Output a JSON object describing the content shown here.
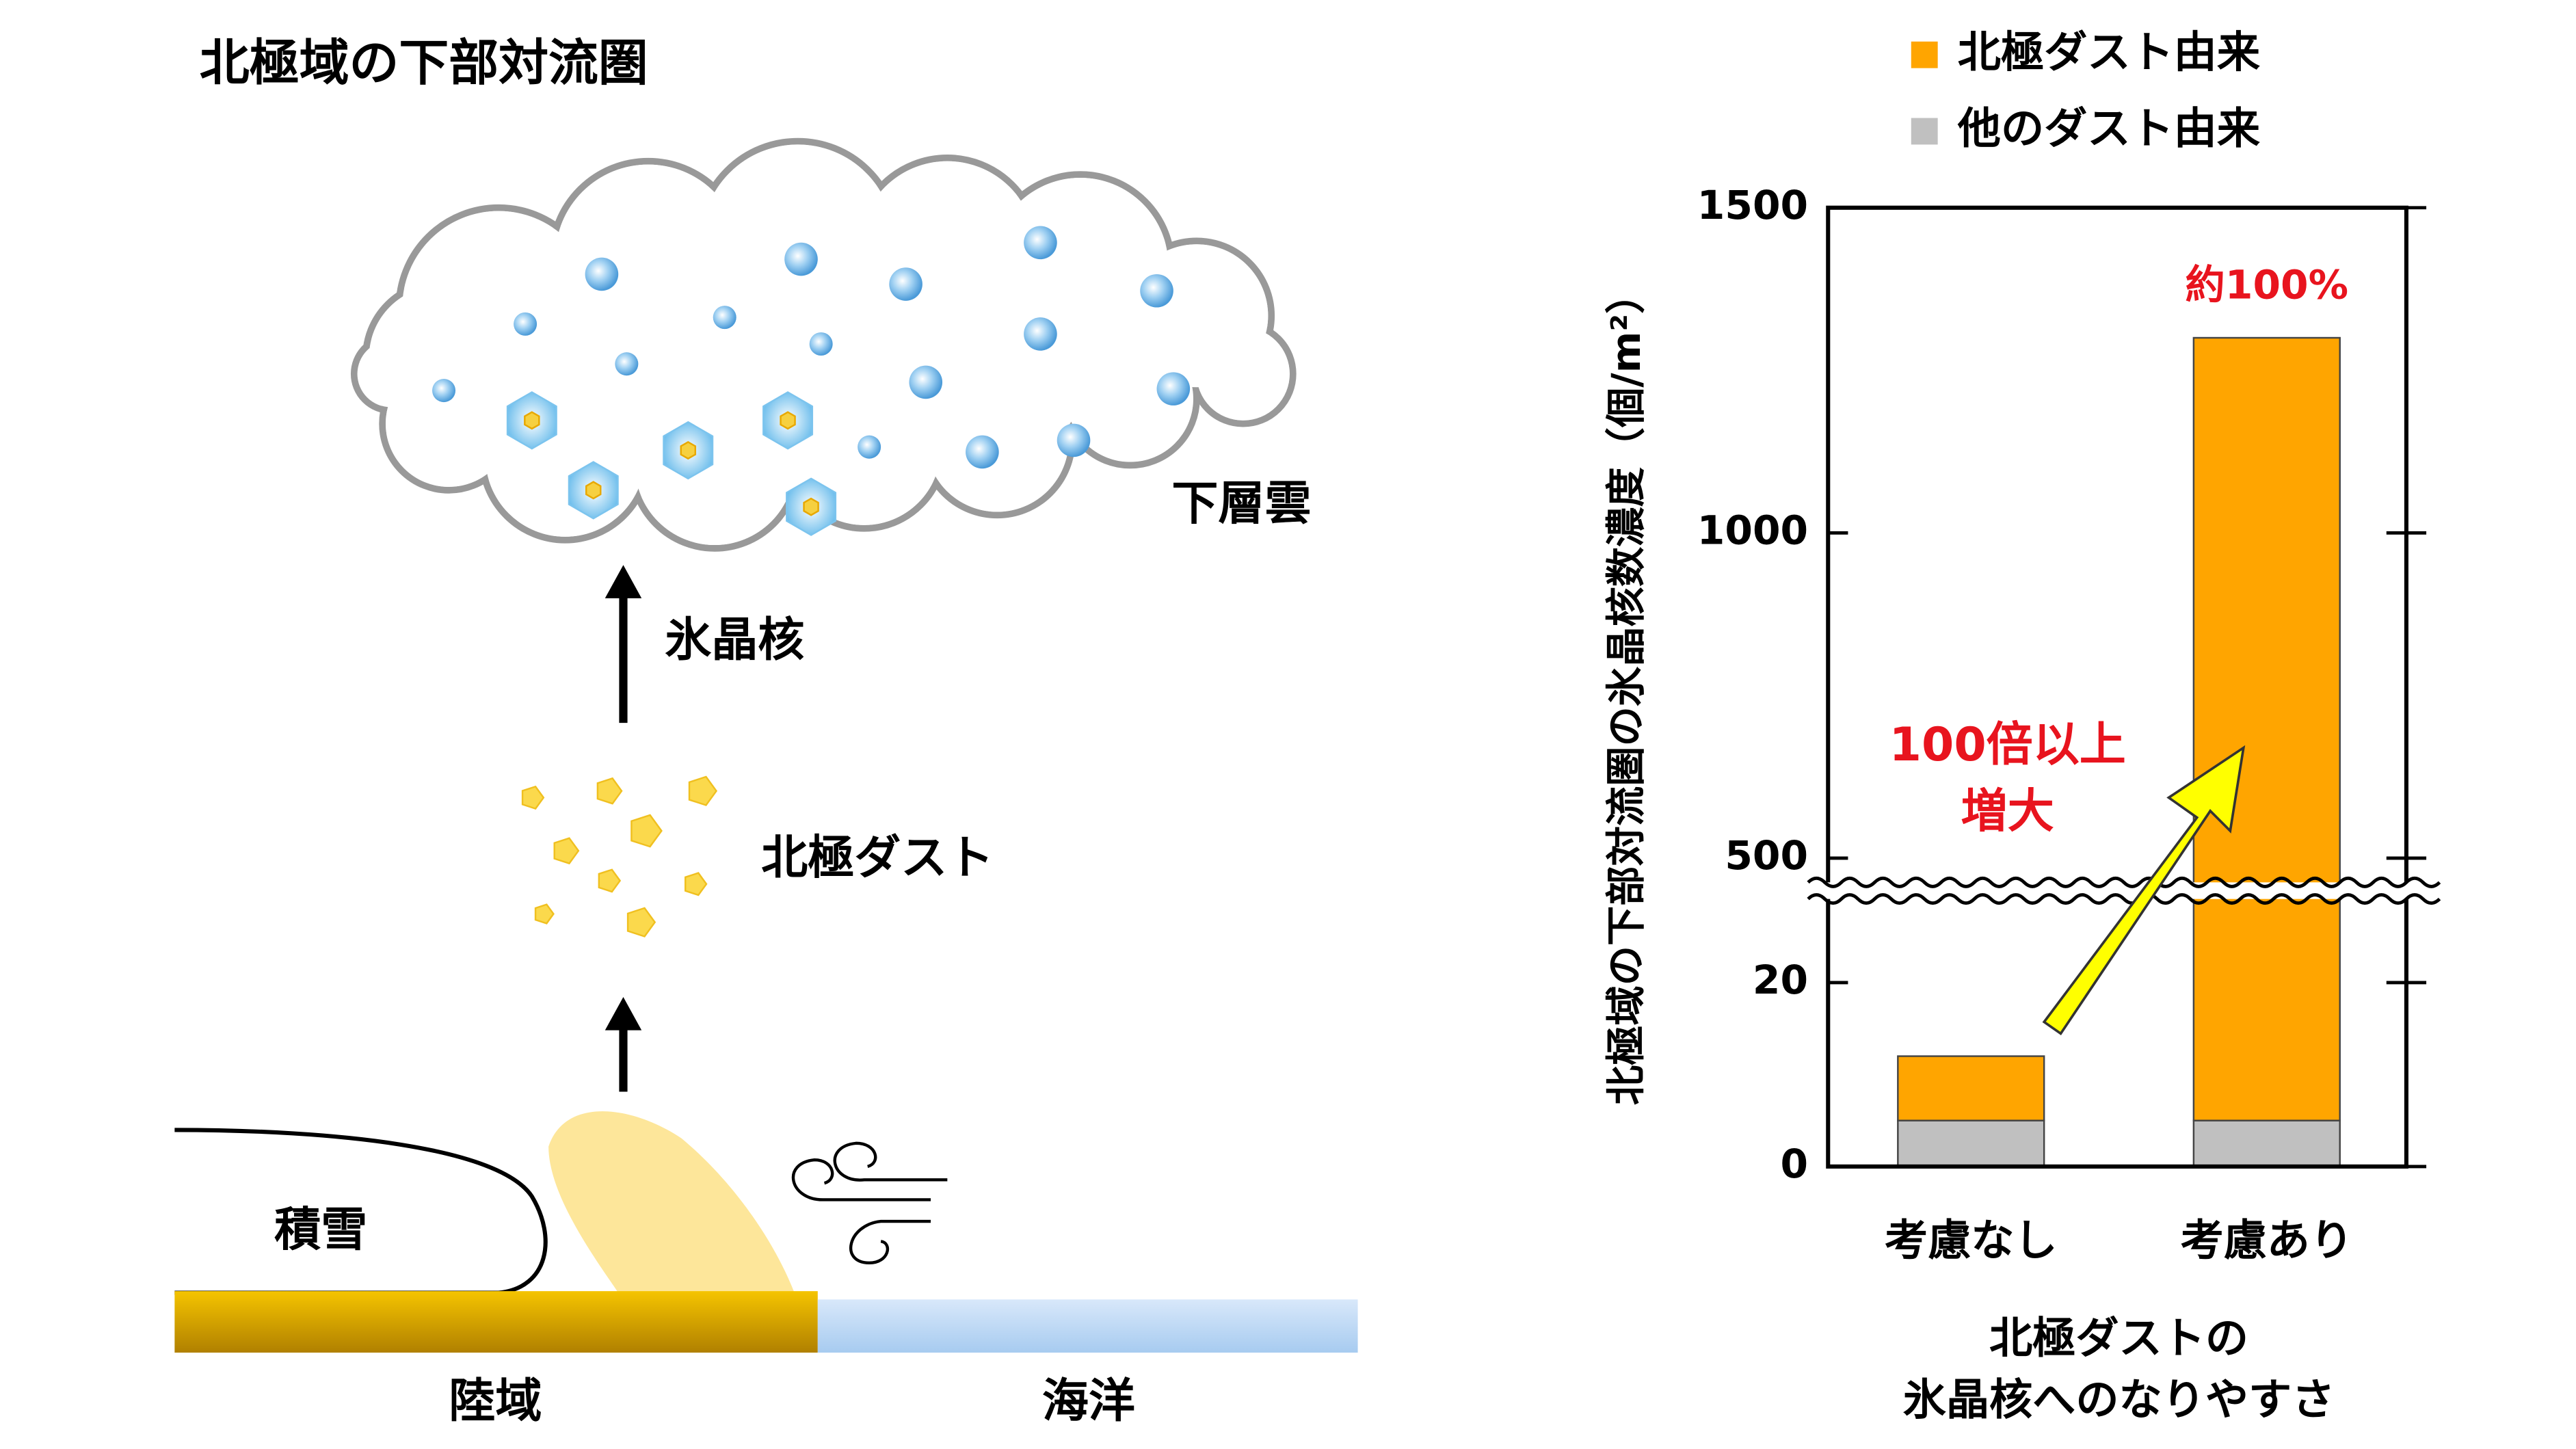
{
  "diagram": {
    "title": "北極域の下部対流圏",
    "cloud_label": "下層雲",
    "arrow_label": "氷晶核",
    "dust_label": "北極ダスト",
    "snow_label": "積雪",
    "land_label": "陸域",
    "ocean_label": "海洋"
  },
  "chart_data": {
    "type": "stacked-bar",
    "y_label": "北極域の下部対流圏の氷晶核数濃度（個/m²）",
    "x_label": [
      "北極ダストの",
      "氷晶核へのなりやすさ"
    ],
    "categories": [
      "考慮なし",
      "考慮あり"
    ],
    "series": [
      {
        "name": "他のダスト由来",
        "color": "#c0c0c0",
        "values": [
          5,
          5
        ]
      },
      {
        "name": "北極ダスト由来",
        "color": "#ffa500",
        "values": [
          7,
          1295
        ]
      }
    ],
    "ylim": [
      0,
      1500
    ],
    "axis_break": [
      30,
      450
    ],
    "yticks": [
      0,
      20,
      500,
      1000,
      1500
    ],
    "annotations": [
      "約100%",
      "100倍以上",
      "増大"
    ]
  }
}
